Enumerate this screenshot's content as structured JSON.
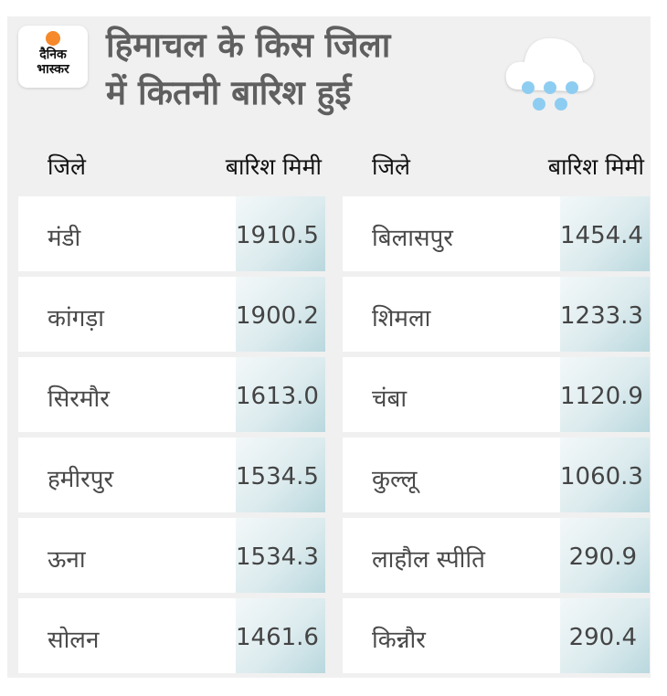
{
  "brand": {
    "line1": "दैनिक",
    "line2": "भास्कर"
  },
  "title": {
    "line1": "हिमाचल के किस जिला",
    "line2": "में कितनी बारिश हुई"
  },
  "icons": {
    "weather": "rain-cloud-icon"
  },
  "colors": {
    "title": "#5f5f5f",
    "brand_sun": "#f5892b",
    "raindrop": "#8ecdf2"
  },
  "tables": [
    {
      "header": {
        "district": "जिले",
        "rain": "बारिश मिमी"
      },
      "rows": [
        {
          "district": "मंडी",
          "rain": "1910.5"
        },
        {
          "district": "कांगड़ा",
          "rain": "1900.2"
        },
        {
          "district": "सिरमौर",
          "rain": "1613.0"
        },
        {
          "district": "हमीरपुर",
          "rain": "1534.5"
        },
        {
          "district": "ऊना",
          "rain": "1534.3"
        },
        {
          "district": "सोलन",
          "rain": "1461.6"
        }
      ]
    },
    {
      "header": {
        "district": "जिले",
        "rain": "बारिश मिमी"
      },
      "rows": [
        {
          "district": "बिलासपुर",
          "rain": "1454.4"
        },
        {
          "district": "शिमला",
          "rain": "1233.3"
        },
        {
          "district": "चंबा",
          "rain": "1120.9"
        },
        {
          "district": "कुल्लू",
          "rain": "1060.3"
        },
        {
          "district": "लाहौल स्पीति",
          "rain": "290.9"
        },
        {
          "district": "किन्नौर",
          "rain": "290.4"
        }
      ]
    }
  ]
}
